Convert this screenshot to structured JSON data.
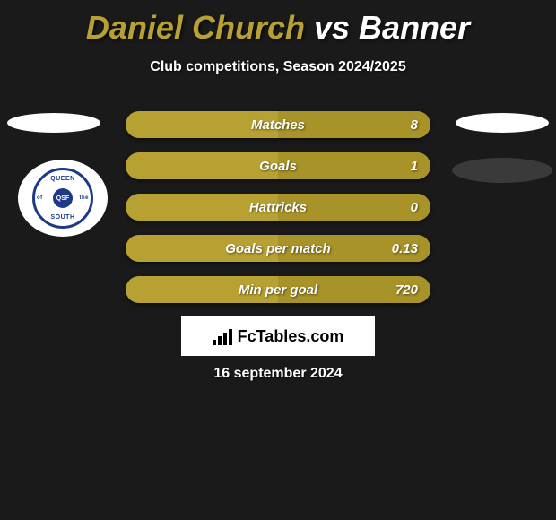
{
  "title": {
    "player1": "Daniel Church",
    "vs": "vs",
    "player2": "Banner"
  },
  "subtitle": "Club competitions, Season 2024/2025",
  "stats": [
    {
      "label": "Matches",
      "value": "8"
    },
    {
      "label": "Goals",
      "value": "1"
    },
    {
      "label": "Hattricks",
      "value": "0"
    },
    {
      "label": "Goals per match",
      "value": "0.13"
    },
    {
      "label": "Min per goal",
      "value": "720"
    }
  ],
  "club": {
    "top": "QUEEN",
    "bottom": "SOUTH",
    "left": "of",
    "right": "the",
    "center": "QSF"
  },
  "branding": "FcTables.com",
  "date": "16 september 2024",
  "colors": {
    "bg": "#1a1a1a",
    "bar": "#b8a133",
    "bar_half": "#a89328",
    "text": "#ffffff",
    "club_blue": "#1d3a8a"
  }
}
